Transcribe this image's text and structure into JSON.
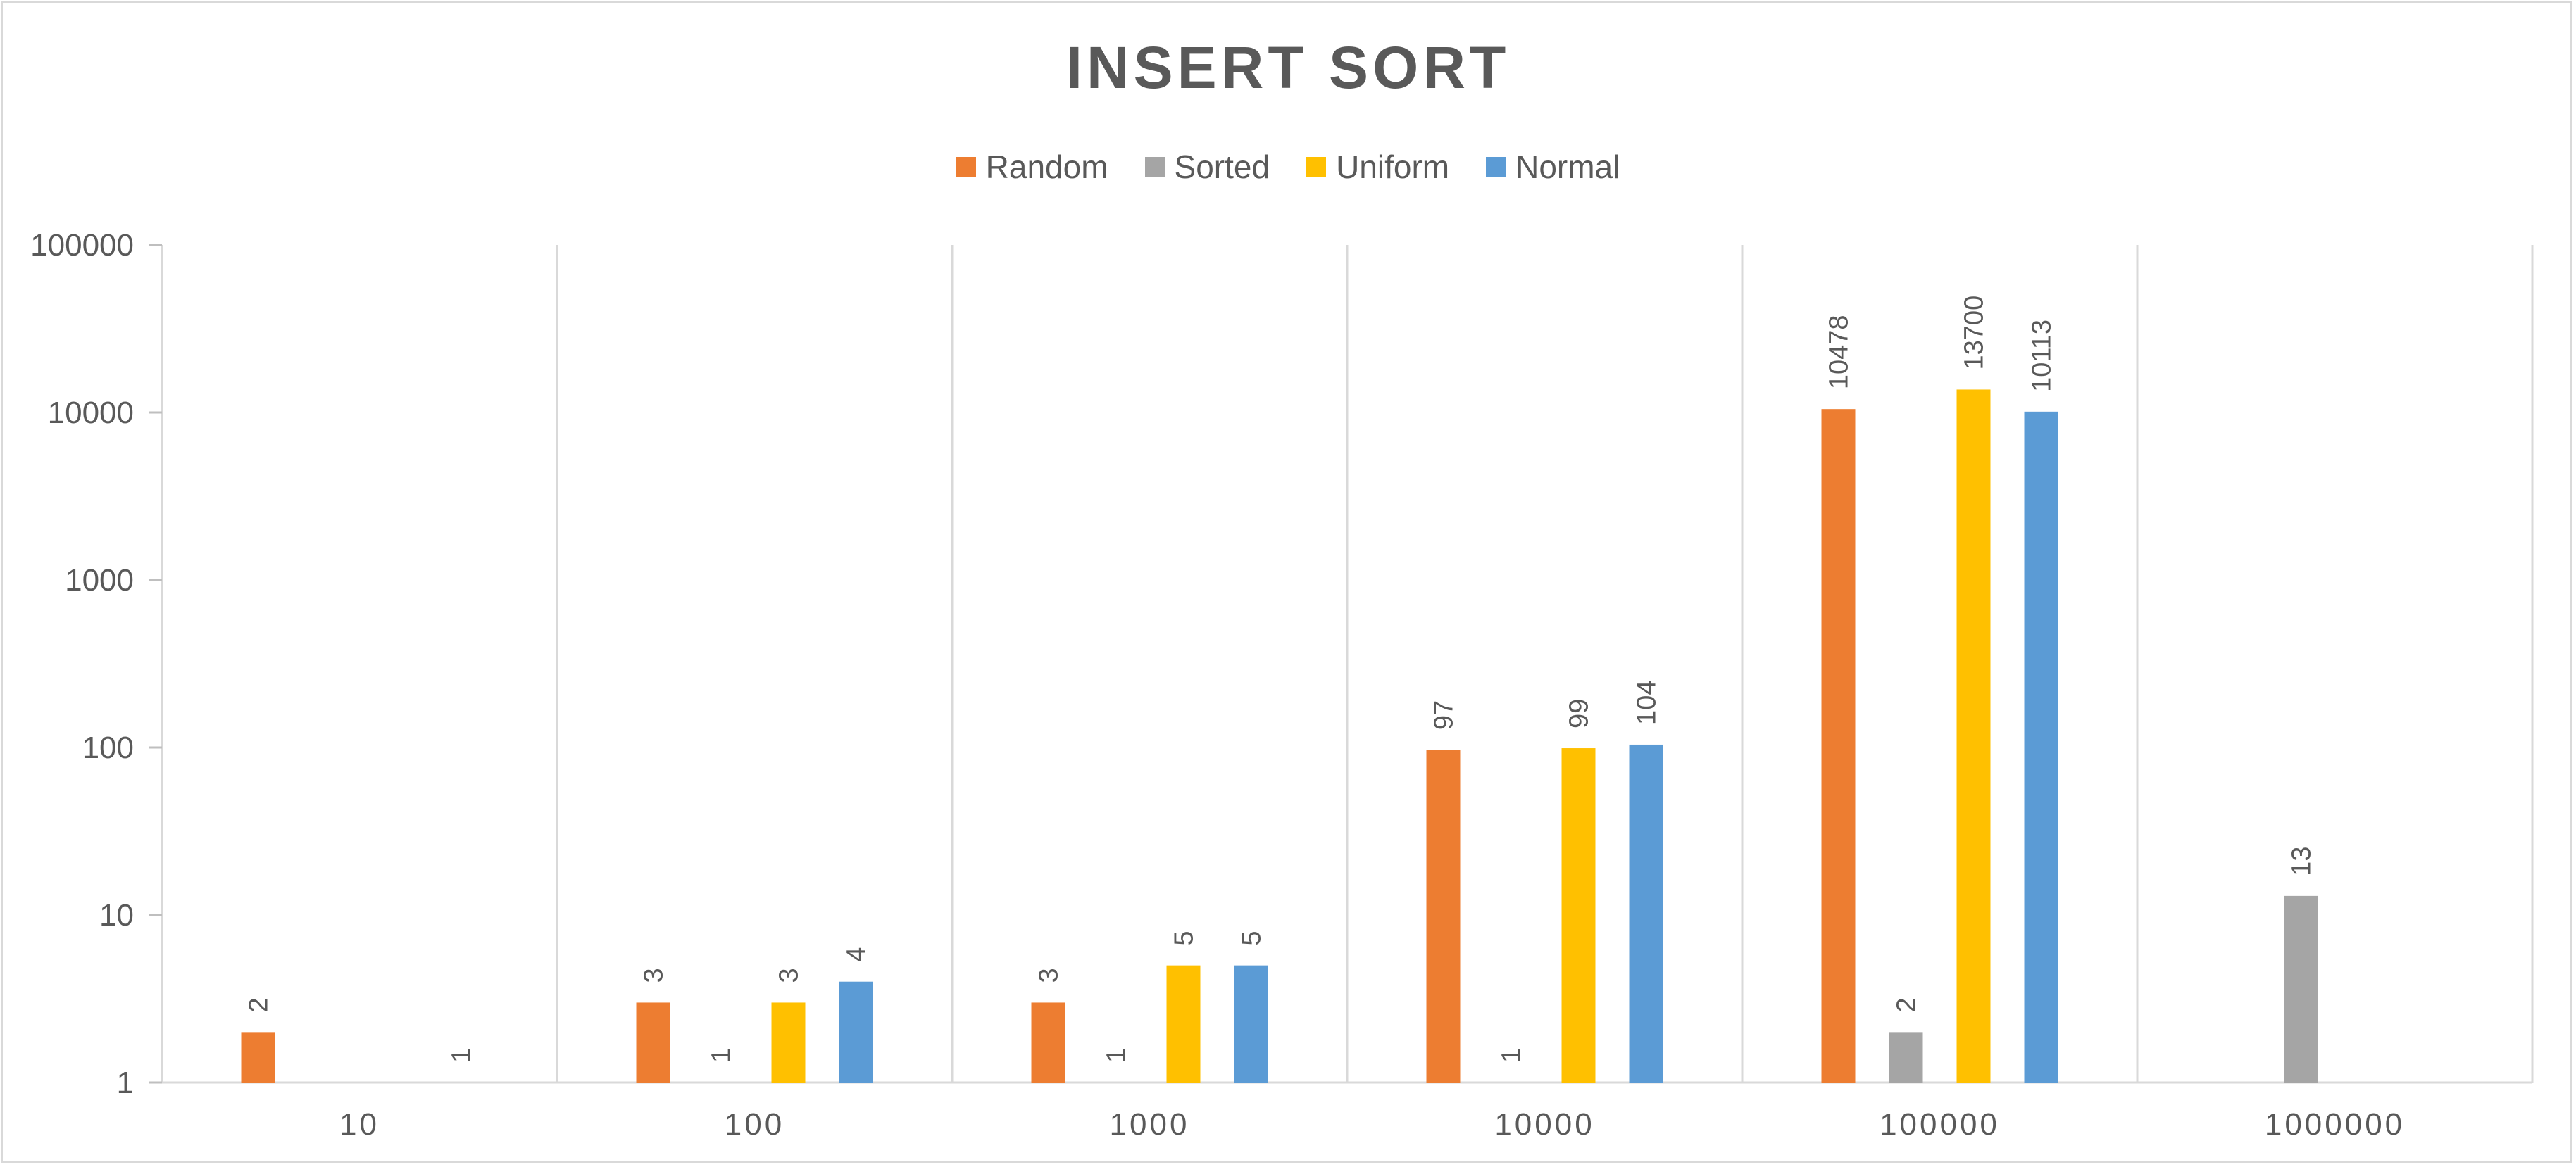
{
  "chart_data": {
    "type": "bar",
    "title": "INSERT SORT",
    "xlabel": "",
    "ylabel": "",
    "yscale": "log",
    "ylim": [
      1,
      100000
    ],
    "yticks": [
      "1",
      "10",
      "100",
      "1000",
      "10000",
      "100000"
    ],
    "legend": "top-center",
    "grid": "vertical category separators",
    "categories": [
      "10",
      "100",
      "1000",
      "10000",
      "100000",
      "1000000"
    ],
    "series": [
      {
        "name": "Random",
        "color": "#ED7D31",
        "values": [
          2,
          3,
          3,
          97,
          10478,
          null
        ]
      },
      {
        "name": "Sorted",
        "color": "#A5A5A5",
        "values": [
          null,
          1,
          1,
          1,
          2,
          13
        ]
      },
      {
        "name": "Uniform",
        "color": "#FFC000",
        "values": [
          null,
          3,
          5,
          99,
          13700,
          null
        ]
      },
      {
        "name": "Normal",
        "color": "#5B9BD5",
        "values": [
          1,
          4,
          5,
          104,
          10113,
          null
        ]
      }
    ]
  }
}
